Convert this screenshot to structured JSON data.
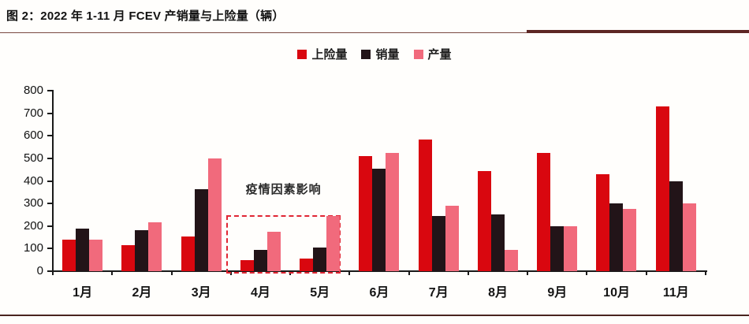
{
  "header": {
    "title": "图 2：2022 年 1-11 月 FCEV 产销量与上险量（辆）"
  },
  "colors": {
    "insurance_red": "#d9070f",
    "sales_black": "#221418",
    "production_pink": "#f16a7c",
    "accent_rule": "#5d2624",
    "annotation_box": "#e02633"
  },
  "annotation": {
    "text": "疫情因素影响"
  },
  "chart_data": {
    "type": "bar",
    "title": "2022 年 1-11 月 FCEV 产销量与上险量（辆）",
    "categories": [
      "1月",
      "2月",
      "3月",
      "4月",
      "5月",
      "6月",
      "7月",
      "8月",
      "9月",
      "10月",
      "11月"
    ],
    "series": [
      {
        "name": "上险量",
        "color": "#d9070f",
        "values": [
          140,
          115,
          155,
          50,
          55,
          510,
          585,
          445,
          525,
          430,
          730
        ]
      },
      {
        "name": "销量",
        "color": "#221418",
        "values": [
          190,
          180,
          365,
          95,
          105,
          455,
          245,
          250,
          200,
          300,
          400
        ]
      },
      {
        "name": "产量",
        "color": "#f16a7c",
        "values": [
          140,
          215,
          500,
          175,
          245,
          525,
          290,
          95,
          200,
          275,
          300
        ]
      }
    ],
    "xlabel": "",
    "ylabel": "",
    "ylim": [
      0,
      800
    ],
    "ytick_step": 100,
    "grid": false,
    "legend_position": "top-center",
    "annotation": {
      "text": "疫情因素影响",
      "box_months": [
        "4月",
        "5月"
      ]
    }
  }
}
